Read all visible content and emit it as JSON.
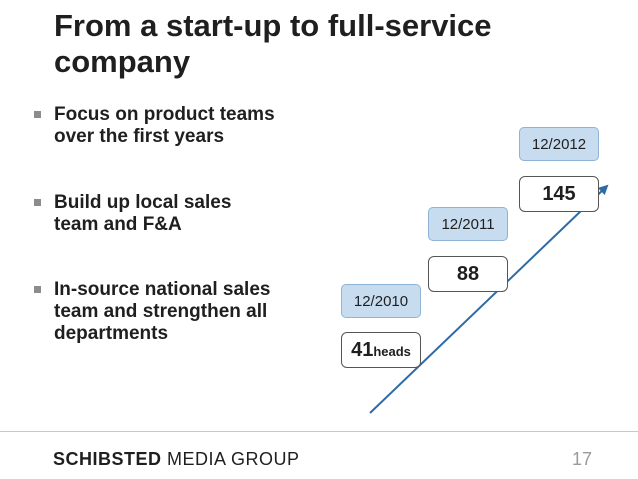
{
  "slide": {
    "title_line1": "From a start-up to full-service",
    "title_line2": "company",
    "bullets": [
      {
        "line1": "Focus on product teams",
        "line2": "over the first years"
      },
      {
        "line1": "Build up local sales",
        "line2": "team and F&A"
      },
      {
        "line1": "In-source national sales",
        "line2": "team and strengthen all",
        "line3": "departments"
      }
    ],
    "milestones": [
      {
        "date": "12/2010",
        "count": "41",
        "unit": "heads"
      },
      {
        "date": "12/2011",
        "count": "88"
      },
      {
        "date": "12/2012",
        "count": "145"
      }
    ],
    "footer": {
      "brand_bold": "SCHIBSTED",
      "brand_rest": " MEDIA GROUP",
      "page_number": "17"
    },
    "colors": {
      "date_box_fill": "#c8dcf0",
      "arrow": "#2e6aa6"
    }
  }
}
